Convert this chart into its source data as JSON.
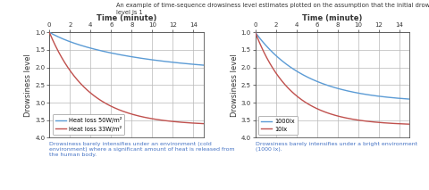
{
  "title_text": "An example of time-sequence drowsiness level estimates plotted on the assumption that the initial drowsiness\nlevel is 1",
  "xlabel": "Time (minute)",
  "ylabel": "Drowsiness level",
  "x_ticks": [
    0,
    2,
    4,
    6,
    8,
    10,
    12,
    14
  ],
  "y_ticks": [
    1.0,
    1.5,
    2.0,
    2.5,
    3.0,
    3.5,
    4.0
  ],
  "ylim_bottom": 4.0,
  "ylim_top": 1.0,
  "xlim": [
    0,
    15
  ],
  "plot1": {
    "legend": [
      "Heat loss 50W/m²",
      "Heat loss 33W/m²"
    ],
    "colors": [
      "#5b9bd5",
      "#c0504d"
    ],
    "caption": "Drowsiness barely intensifies under an environment (cold\nenvironment) where a significant amount of heat is released from\nthe human body."
  },
  "plot2": {
    "legend": [
      "1000lx",
      "10lx"
    ],
    "colors": [
      "#5b9bd5",
      "#c0504d"
    ],
    "caption": "Drowsiness barely intensifies under a bright environment\n(1000 lx)."
  },
  "bg_color": "#ffffff",
  "grid_color": "#b8b8b8",
  "title_color": "#333333",
  "caption_color": "#4472c4",
  "axis_color": "#333333",
  "title_fontsize": 4.8,
  "axis_label_fontsize": 6.0,
  "tick_fontsize": 5.0,
  "legend_fontsize": 4.8,
  "caption_fontsize": 4.5
}
